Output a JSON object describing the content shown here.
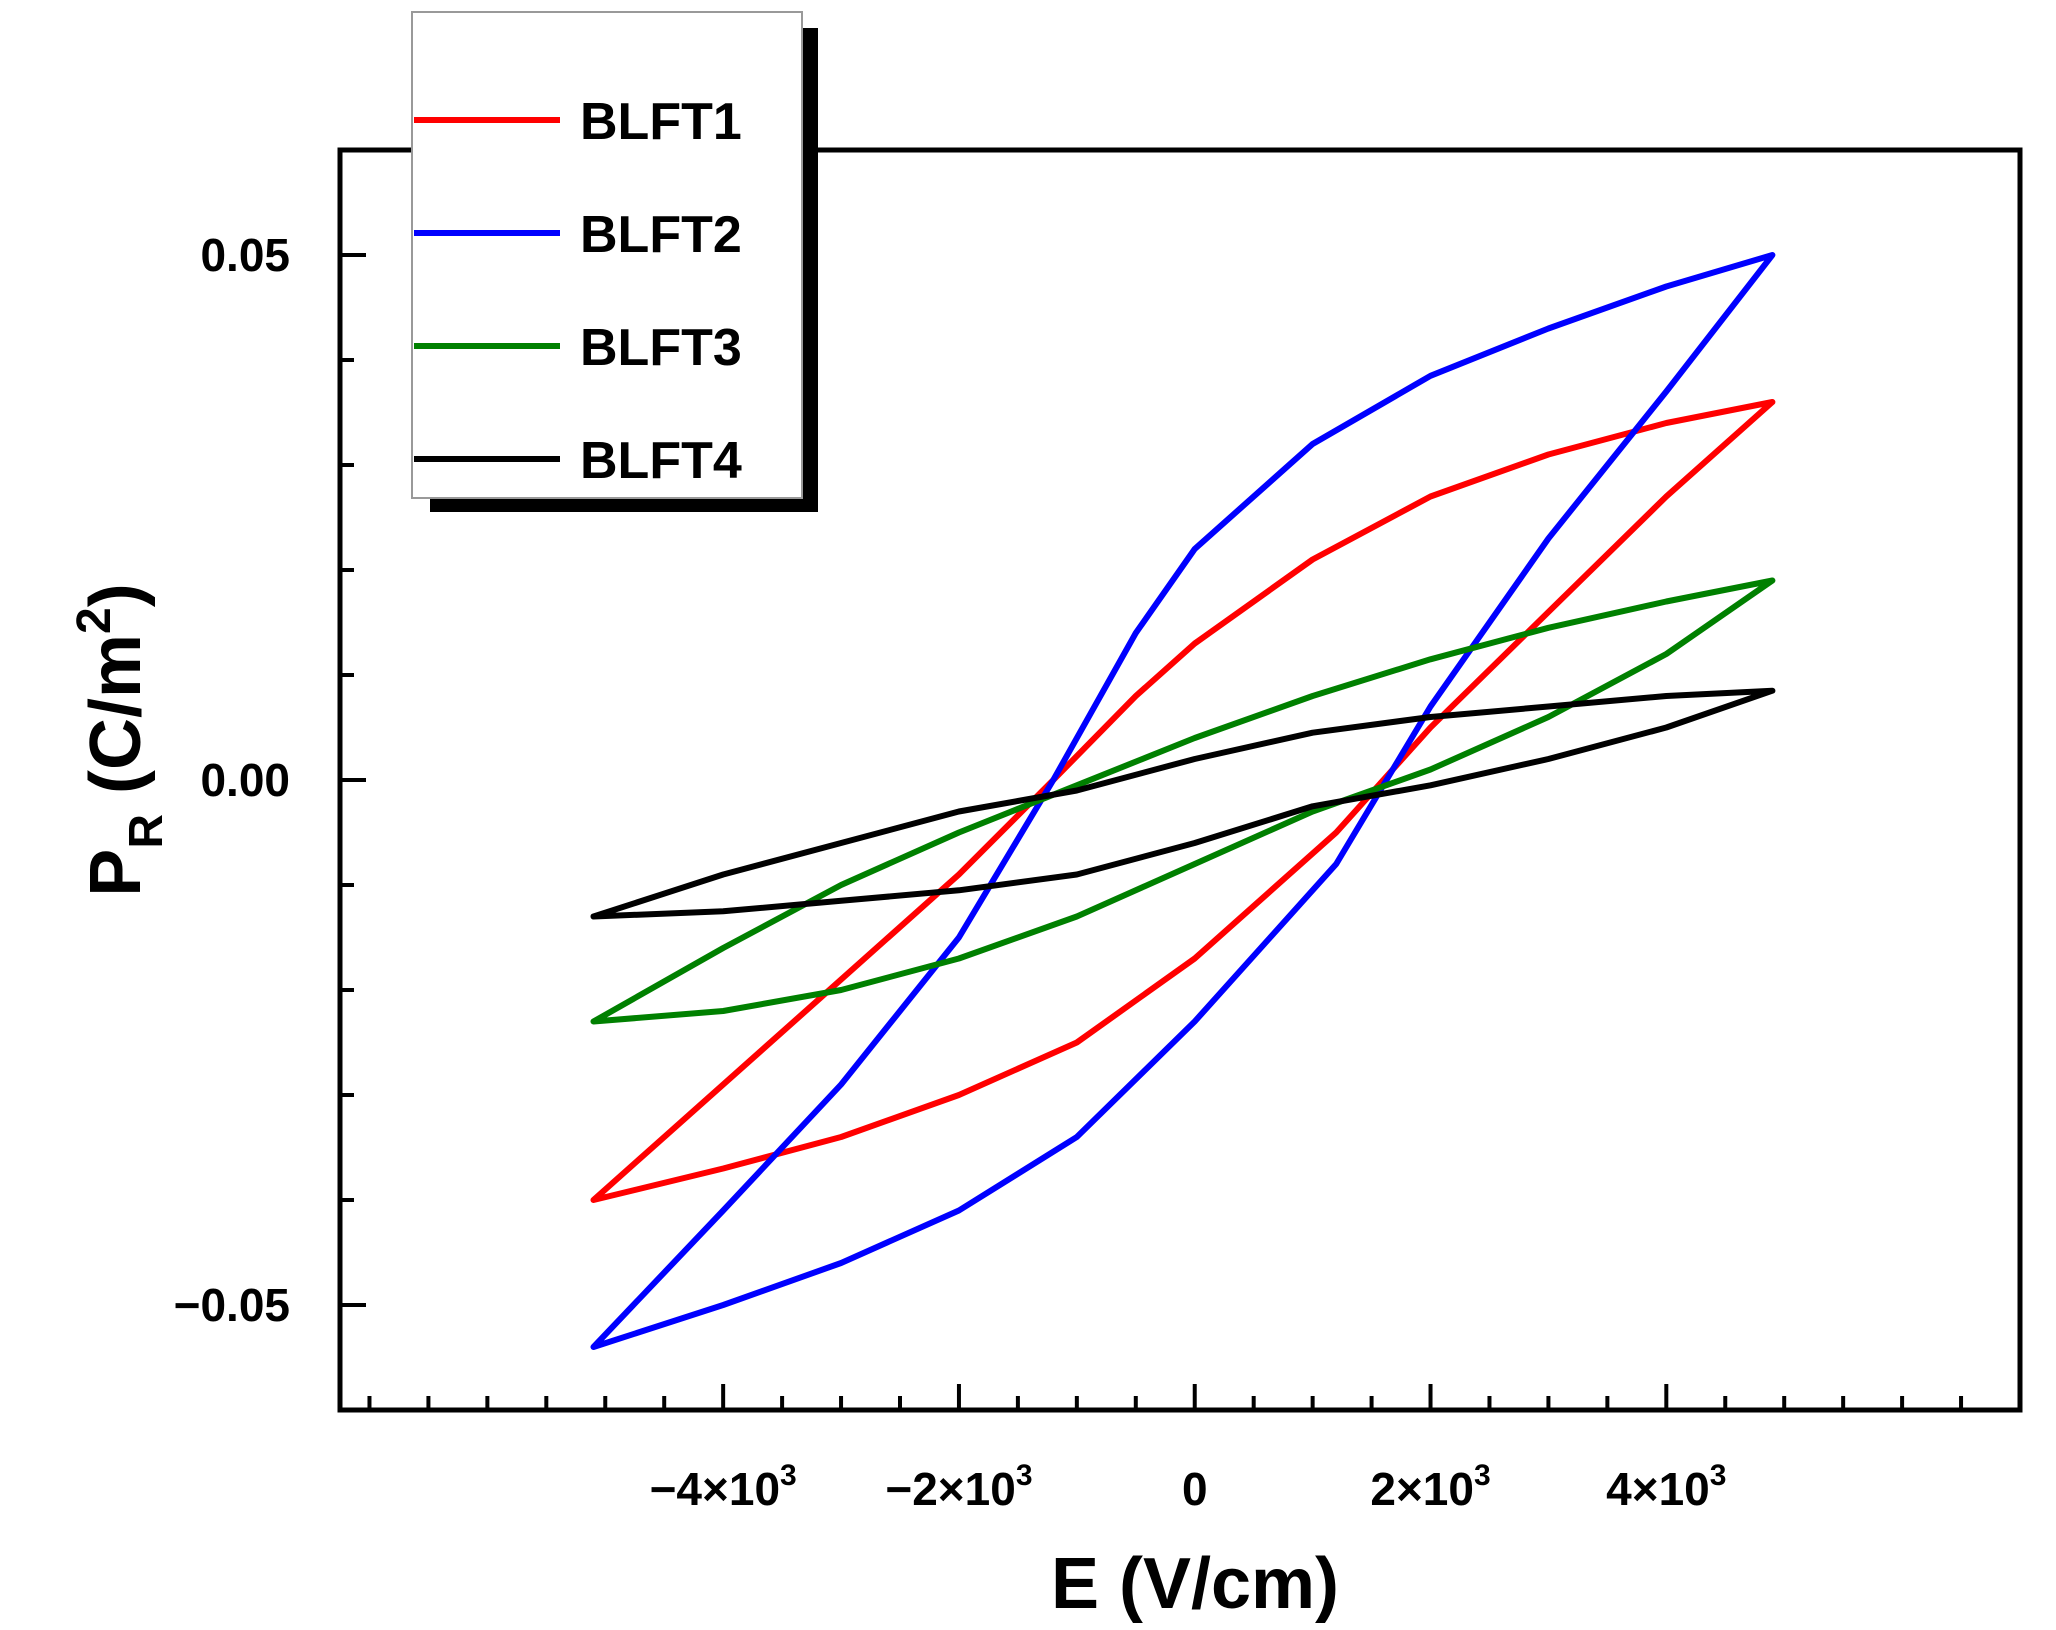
{
  "chart_data": {
    "type": "line",
    "title": "",
    "xlabel": "E (V/cm)",
    "ylabel": {
      "base": "P",
      "sub": "R",
      "unit_open": " (C/m",
      "unit_sup": "2",
      "unit_close": ")"
    },
    "xlim": [
      -7250,
      7000
    ],
    "ylim": [
      -0.06,
      0.06
    ],
    "x_ticks": [
      {
        "value": -4000,
        "mantissa": "−4×10",
        "exp": "3"
      },
      {
        "value": -2000,
        "mantissa": "−2×10",
        "exp": "3"
      },
      {
        "value": 0,
        "mantissa": "0",
        "exp": ""
      },
      {
        "value": 2000,
        "mantissa": "2×10",
        "exp": "3"
      },
      {
        "value": 4000,
        "mantissa": "4×10",
        "exp": "3"
      }
    ],
    "x_minor_step": 500,
    "y_ticks": [
      {
        "value": 0.05,
        "label": "0.05"
      },
      {
        "value": 0.0,
        "label": "0.00"
      },
      {
        "value": -0.05,
        "label": "−0.05"
      }
    ],
    "y_minor_step": 0.01,
    "grid": false,
    "legend_position": "top-left",
    "series": [
      {
        "name": "BLFT1",
        "color": "#ff0000",
        "upper": [
          [
            -5100,
            -0.04
          ],
          [
            -4000,
            -0.029
          ],
          [
            -3000,
            -0.019
          ],
          [
            -2000,
            -0.009
          ],
          [
            -1200,
            0.0
          ],
          [
            -500,
            0.008
          ],
          [
            0,
            0.013
          ],
          [
            1000,
            0.021
          ],
          [
            2000,
            0.027
          ],
          [
            3000,
            0.031
          ],
          [
            4000,
            0.034
          ],
          [
            4900,
            0.036
          ]
        ],
        "lower": [
          [
            4900,
            0.036
          ],
          [
            4000,
            0.027
          ],
          [
            3000,
            0.016
          ],
          [
            2000,
            0.005
          ],
          [
            1200,
            -0.005
          ],
          [
            0,
            -0.017
          ],
          [
            -1000,
            -0.025
          ],
          [
            -2000,
            -0.03
          ],
          [
            -3000,
            -0.034
          ],
          [
            -4000,
            -0.037
          ],
          [
            -5100,
            -0.04
          ]
        ]
      },
      {
        "name": "BLFT2",
        "color": "#0000ff",
        "upper": [
          [
            -5100,
            -0.054
          ],
          [
            -4000,
            -0.041
          ],
          [
            -3000,
            -0.029
          ],
          [
            -2000,
            -0.015
          ],
          [
            -1200,
            0.0
          ],
          [
            -500,
            0.014
          ],
          [
            0,
            0.022
          ],
          [
            1000,
            0.032
          ],
          [
            2000,
            0.0385
          ],
          [
            3000,
            0.043
          ],
          [
            4000,
            0.047
          ],
          [
            4900,
            0.05
          ]
        ],
        "lower": [
          [
            4900,
            0.05
          ],
          [
            4000,
            0.037
          ],
          [
            3000,
            0.023
          ],
          [
            2000,
            0.007
          ],
          [
            1200,
            -0.008
          ],
          [
            0,
            -0.023
          ],
          [
            -1000,
            -0.034
          ],
          [
            -2000,
            -0.041
          ],
          [
            -3000,
            -0.046
          ],
          [
            -4000,
            -0.05
          ],
          [
            -5100,
            -0.054
          ]
        ]
      },
      {
        "name": "BLFT3",
        "color": "#008000",
        "upper": [
          [
            -5100,
            -0.023
          ],
          [
            -4000,
            -0.016
          ],
          [
            -3000,
            -0.01
          ],
          [
            -2000,
            -0.005
          ],
          [
            -1000,
            -0.0005
          ],
          [
            0,
            0.004
          ],
          [
            1000,
            0.008
          ],
          [
            2000,
            0.0115
          ],
          [
            3000,
            0.0145
          ],
          [
            4000,
            0.017
          ],
          [
            4900,
            0.019
          ]
        ],
        "lower": [
          [
            4900,
            0.019
          ],
          [
            4000,
            0.012
          ],
          [
            3000,
            0.006
          ],
          [
            2000,
            0.001
          ],
          [
            1000,
            -0.003
          ],
          [
            0,
            -0.008
          ],
          [
            -1000,
            -0.013
          ],
          [
            -2000,
            -0.017
          ],
          [
            -3000,
            -0.02
          ],
          [
            -4000,
            -0.022
          ],
          [
            -5100,
            -0.023
          ]
        ]
      },
      {
        "name": "BLFT4",
        "color": "#000000",
        "upper": [
          [
            -5100,
            -0.013
          ],
          [
            -4000,
            -0.009
          ],
          [
            -3000,
            -0.006
          ],
          [
            -2000,
            -0.003
          ],
          [
            -1000,
            -0.001
          ],
          [
            0,
            0.002
          ],
          [
            1000,
            0.0045
          ],
          [
            2000,
            0.006
          ],
          [
            3000,
            0.007
          ],
          [
            4000,
            0.008
          ],
          [
            4900,
            0.0085
          ]
        ],
        "lower": [
          [
            4900,
            0.0085
          ],
          [
            4000,
            0.005
          ],
          [
            3000,
            0.002
          ],
          [
            2000,
            -0.0005
          ],
          [
            1000,
            -0.0025
          ],
          [
            0,
            -0.006
          ],
          [
            -1000,
            -0.009
          ],
          [
            -2000,
            -0.0105
          ],
          [
            -3000,
            -0.0115
          ],
          [
            -4000,
            -0.0125
          ],
          [
            -5100,
            -0.013
          ]
        ]
      }
    ]
  }
}
